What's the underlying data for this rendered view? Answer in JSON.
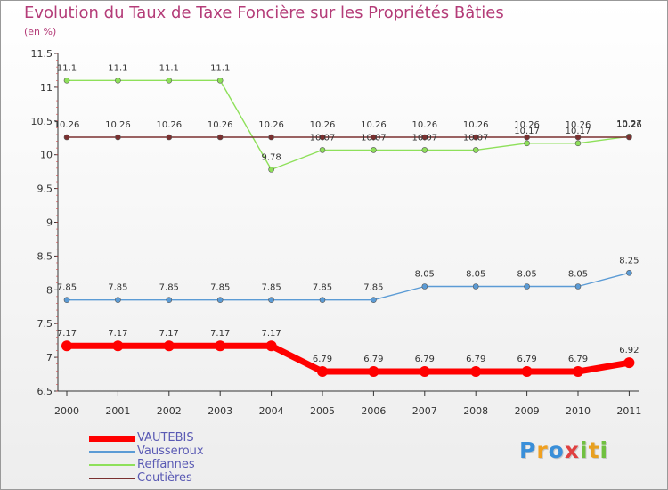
{
  "chart_data": {
    "type": "line",
    "title": "Evolution du Taux de Taxe Foncière sur les Propriétés Bâties",
    "subtitle": "(en %)",
    "x": [
      "2000",
      "2001",
      "2002",
      "2003",
      "2004",
      "2005",
      "2006",
      "2007",
      "2008",
      "2009",
      "2010",
      "2011"
    ],
    "ylim": [
      6.5,
      11.5
    ],
    "yticks": [
      "6.5",
      "7",
      "7.5",
      "8",
      "8.5",
      "9",
      "9.5",
      "10",
      "10.5",
      "11",
      "11.5"
    ],
    "grid": false,
    "legend_position": "bottom-left",
    "series": [
      {
        "name": "VAUTEBIS",
        "color": "#ff0000",
        "values": [
          7.17,
          7.17,
          7.17,
          7.17,
          7.17,
          6.79,
          6.79,
          6.79,
          6.79,
          6.79,
          6.79,
          6.92
        ],
        "labels": [
          "7.17",
          "7.17",
          "7.17",
          "7.17",
          "7.17",
          "6.79",
          "6.79",
          "6.79",
          "6.79",
          "6.79",
          "6.79",
          "6.92"
        ]
      },
      {
        "name": "Vausseroux",
        "color": "#5b9bd5",
        "values": [
          7.85,
          7.85,
          7.85,
          7.85,
          7.85,
          7.85,
          7.85,
          8.05,
          8.05,
          8.05,
          8.05,
          8.25
        ],
        "labels": [
          "7.85",
          "7.85",
          "7.85",
          "7.85",
          "7.85",
          "7.85",
          "7.85",
          "8.05",
          "8.05",
          "8.05",
          "8.05",
          "8.25"
        ]
      },
      {
        "name": "Reffannes",
        "color": "#8ee05a",
        "values": [
          11.1,
          11.1,
          11.1,
          11.1,
          9.78,
          10.07,
          10.07,
          10.07,
          10.07,
          10.17,
          10.17,
          10.27
        ],
        "labels": [
          "11.1",
          "11.1",
          "11.1",
          "11.1",
          "9.78",
          "10.07",
          "10.07",
          "10.07",
          "10.07",
          "10.17",
          "10.17",
          "10.27"
        ]
      },
      {
        "name": "Coutières",
        "color": "#7a3030",
        "values": [
          10.26,
          10.26,
          10.26,
          10.26,
          10.26,
          10.26,
          10.26,
          10.26,
          10.26,
          10.26,
          10.26,
          10.26
        ],
        "labels": [
          "10.26",
          "10.26",
          "10.26",
          "10.26",
          "10.26",
          "10.26",
          "10.26",
          "10.26",
          "10.26",
          "10.26",
          "10.26",
          "10.26"
        ]
      }
    ]
  },
  "logo": {
    "text": "Proxiti"
  }
}
